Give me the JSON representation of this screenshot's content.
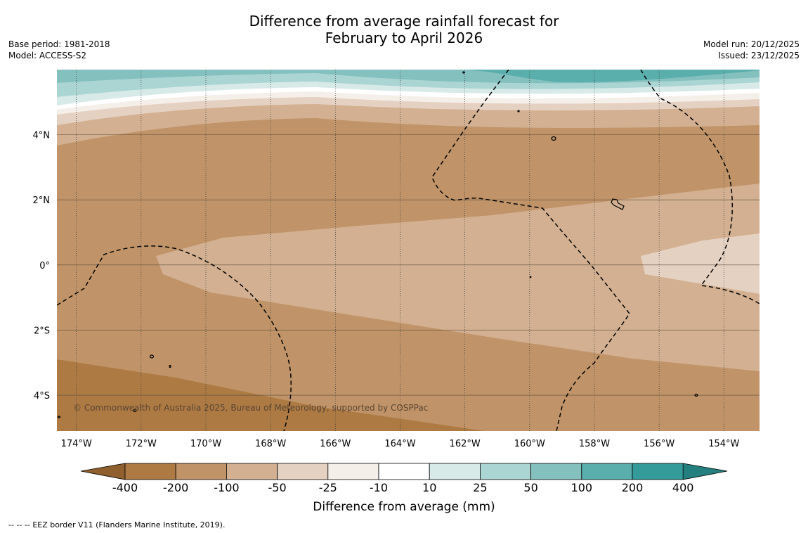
{
  "title": {
    "line1": "Difference from average rainfall forecast for",
    "line2": "February to April 2026"
  },
  "meta": {
    "base_period": "Base period: 1981-2018",
    "model": "Model: ACCESS-S2",
    "model_run": "Model run: 20/12/2025",
    "issued": "Issued: 23/12/2025"
  },
  "map": {
    "copyright": "© Commonwealth of Australia 2025, Bureau of Meteorology, supported by COSPPac",
    "lon_range": [
      -174.6,
      -152.9
    ],
    "lat_range": [
      -5.1,
      6.0
    ],
    "lat_ticks": [
      {
        "value": 4,
        "label": "4°N"
      },
      {
        "value": 2,
        "label": "2°N"
      },
      {
        "value": 0,
        "label": "0°"
      },
      {
        "value": -2,
        "label": "2°S"
      },
      {
        "value": -4,
        "label": "4°S"
      }
    ],
    "lon_ticks": [
      {
        "value": -174,
        "label": "174°W"
      },
      {
        "value": -172,
        "label": "172°W"
      },
      {
        "value": -170,
        "label": "170°W"
      },
      {
        "value": -168,
        "label": "168°W"
      },
      {
        "value": -166,
        "label": "166°W"
      },
      {
        "value": -164,
        "label": "164°W"
      },
      {
        "value": -162,
        "label": "162°W"
      },
      {
        "value": -160,
        "label": "160°W"
      },
      {
        "value": -158,
        "label": "158°W"
      },
      {
        "value": -156,
        "label": "156°W"
      },
      {
        "value": -154,
        "label": "154°W"
      }
    ]
  },
  "colorbar": {
    "title": "Difference from average (mm)",
    "colors": [
      "#ad7a43",
      "#c09468",
      "#d2b091",
      "#e5d1c1",
      "#f5efea",
      "#ffffff",
      "#d7eae8",
      "#abd5d3",
      "#83c0be",
      "#5aaeac",
      "#359b9a"
    ],
    "end_left_color": "#8f5f2e",
    "end_right_color": "#23807f",
    "labels": [
      "-400",
      "-200",
      "-100",
      "-50",
      "-25",
      "-10",
      "10",
      "25",
      "50",
      "100",
      "200",
      "400"
    ]
  },
  "footer": {
    "legend_symbol": "--  --  --",
    "legend_text": "EEZ border V11 (Flanders Marine Institute, 2019)."
  }
}
